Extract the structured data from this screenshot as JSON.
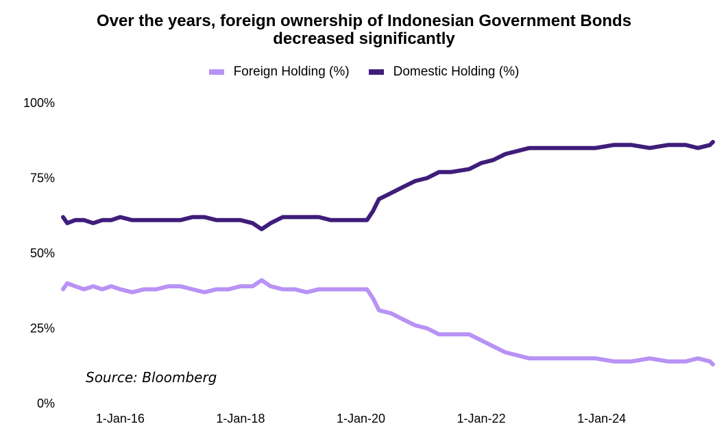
{
  "chart_data": {
    "type": "line",
    "title_line1": "Over the years, foreign ownership of Indonesian Government Bonds",
    "title_line2": "decreased significantly",
    "source": "Source: Bloomberg",
    "ylim": [
      0,
      100
    ],
    "y_ticks": [
      "0%",
      "25%",
      "50%",
      "75%",
      "100%"
    ],
    "y_tick_values": [
      0,
      25,
      50,
      75,
      100
    ],
    "x_ticks": [
      "1-Jan-16",
      "1-Jan-18",
      "1-Jan-20",
      "1-Jan-22",
      "1-Jan-24"
    ],
    "x_tick_years": [
      2016,
      2018,
      2020,
      2022,
      2024
    ],
    "xlim_years": [
      2015.05,
      2025.85
    ],
    "grid": false,
    "legend": "top-center",
    "series": [
      {
        "name": "Foreign Holding (%)",
        "color": "#b892f5",
        "points": [
          [
            2015.05,
            38
          ],
          [
            2015.12,
            40
          ],
          [
            2015.25,
            39
          ],
          [
            2015.4,
            38
          ],
          [
            2015.55,
            39
          ],
          [
            2015.7,
            38
          ],
          [
            2015.85,
            39
          ],
          [
            2016.0,
            38
          ],
          [
            2016.2,
            37
          ],
          [
            2016.4,
            38
          ],
          [
            2016.6,
            38
          ],
          [
            2016.8,
            39
          ],
          [
            2017.0,
            39
          ],
          [
            2017.2,
            38
          ],
          [
            2017.4,
            37
          ],
          [
            2017.6,
            38
          ],
          [
            2017.8,
            38
          ],
          [
            2018.0,
            39
          ],
          [
            2018.2,
            39
          ],
          [
            2018.35,
            41
          ],
          [
            2018.5,
            39
          ],
          [
            2018.7,
            38
          ],
          [
            2018.9,
            38
          ],
          [
            2019.1,
            37
          ],
          [
            2019.3,
            38
          ],
          [
            2019.5,
            38
          ],
          [
            2019.7,
            38
          ],
          [
            2019.9,
            38
          ],
          [
            2020.1,
            38
          ],
          [
            2020.2,
            35
          ],
          [
            2020.3,
            31
          ],
          [
            2020.5,
            30
          ],
          [
            2020.7,
            28
          ],
          [
            2020.9,
            26
          ],
          [
            2021.1,
            25
          ],
          [
            2021.3,
            23
          ],
          [
            2021.5,
            23
          ],
          [
            2021.8,
            23
          ],
          [
            2022.0,
            21
          ],
          [
            2022.2,
            19
          ],
          [
            2022.4,
            17
          ],
          [
            2022.6,
            16
          ],
          [
            2022.8,
            15
          ],
          [
            2023.0,
            15
          ],
          [
            2023.3,
            15
          ],
          [
            2023.6,
            15
          ],
          [
            2023.9,
            15
          ],
          [
            2024.2,
            14
          ],
          [
            2024.5,
            14
          ],
          [
            2024.8,
            15
          ],
          [
            2025.1,
            14
          ],
          [
            2025.4,
            14
          ],
          [
            2025.6,
            15
          ],
          [
            2025.8,
            14
          ],
          [
            2025.85,
            13
          ]
        ]
      },
      {
        "name": "Domestic Holding (%)",
        "color": "#3f1d7a",
        "points": [
          [
            2015.05,
            62
          ],
          [
            2015.12,
            60
          ],
          [
            2015.25,
            61
          ],
          [
            2015.4,
            61
          ],
          [
            2015.55,
            60
          ],
          [
            2015.7,
            61
          ],
          [
            2015.85,
            61
          ],
          [
            2016.0,
            62
          ],
          [
            2016.2,
            61
          ],
          [
            2016.4,
            61
          ],
          [
            2016.6,
            61
          ],
          [
            2016.8,
            61
          ],
          [
            2017.0,
            61
          ],
          [
            2017.2,
            62
          ],
          [
            2017.4,
            62
          ],
          [
            2017.6,
            61
          ],
          [
            2017.8,
            61
          ],
          [
            2018.0,
            61
          ],
          [
            2018.2,
            60
          ],
          [
            2018.35,
            58
          ],
          [
            2018.5,
            60
          ],
          [
            2018.7,
            62
          ],
          [
            2018.9,
            62
          ],
          [
            2019.1,
            62
          ],
          [
            2019.3,
            62
          ],
          [
            2019.5,
            61
          ],
          [
            2019.7,
            61
          ],
          [
            2019.9,
            61
          ],
          [
            2020.1,
            61
          ],
          [
            2020.2,
            64
          ],
          [
            2020.3,
            68
          ],
          [
            2020.5,
            70
          ],
          [
            2020.7,
            72
          ],
          [
            2020.9,
            74
          ],
          [
            2021.1,
            75
          ],
          [
            2021.3,
            77
          ],
          [
            2021.5,
            77
          ],
          [
            2021.8,
            78
          ],
          [
            2022.0,
            80
          ],
          [
            2022.2,
            81
          ],
          [
            2022.4,
            83
          ],
          [
            2022.6,
            84
          ],
          [
            2022.8,
            85
          ],
          [
            2023.0,
            85
          ],
          [
            2023.3,
            85
          ],
          [
            2023.6,
            85
          ],
          [
            2023.9,
            85
          ],
          [
            2024.2,
            86
          ],
          [
            2024.5,
            86
          ],
          [
            2024.8,
            85
          ],
          [
            2025.1,
            86
          ],
          [
            2025.4,
            86
          ],
          [
            2025.6,
            85
          ],
          [
            2025.8,
            86
          ],
          [
            2025.85,
            87
          ]
        ]
      }
    ]
  }
}
